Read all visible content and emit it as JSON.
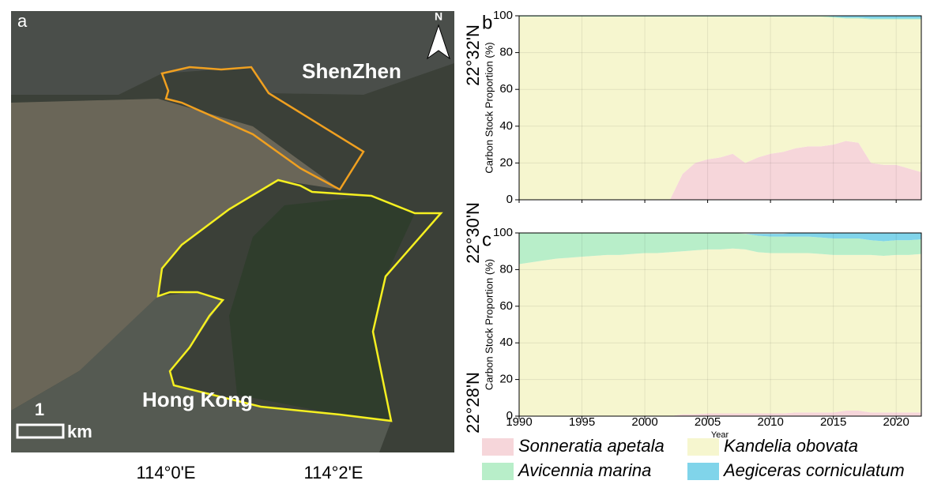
{
  "map": {
    "panel_label": "a",
    "city_north": "ShenZhen",
    "city_south": "Hong Kong",
    "north_arrow": "N",
    "scale_value": "1",
    "scale_unit": "km",
    "lat_labels": [
      "22°32'N",
      "22°30'N",
      "22°28'N"
    ],
    "lon_labels": [
      "114°0'E",
      "114°2'E"
    ]
  },
  "chart_data": [
    {
      "type": "area",
      "panel_label": "b",
      "ylabel": "Carbon Stock Proportion (%)",
      "show_xtick_labels": false,
      "x": [
        1990,
        1991,
        1992,
        1993,
        1994,
        1995,
        1996,
        1997,
        1998,
        1999,
        2000,
        2001,
        2002,
        2003,
        2004,
        2005,
        2006,
        2007,
        2008,
        2009,
        2010,
        2011,
        2012,
        2013,
        2014,
        2015,
        2016,
        2017,
        2018,
        2019,
        2020,
        2021,
        2022
      ],
      "xlim": [
        1990,
        2022
      ],
      "xticks": [
        1990,
        1995,
        2000,
        2005,
        2010,
        2015,
        2020
      ],
      "ylim": [
        0,
        100
      ],
      "yticks": [
        0,
        20,
        40,
        60,
        80,
        100
      ],
      "grid": true,
      "series": [
        {
          "name": "Sonneratia apetala",
          "color": "#f6d6da",
          "values": [
            0,
            0,
            0,
            0,
            0,
            0,
            0,
            0,
            0,
            0,
            0,
            0,
            0,
            14,
            20,
            22,
            23,
            25,
            20,
            23,
            25,
            26,
            28,
            29,
            29,
            30,
            32,
            31,
            20,
            19,
            19,
            17,
            15
          ]
        },
        {
          "name": "Kandelia obovata",
          "color": "#f6f6cf",
          "values": [
            99.5,
            99.5,
            99.5,
            99.5,
            99.5,
            99.5,
            99.5,
            99.5,
            99.5,
            99.5,
            99.5,
            99.5,
            99.5,
            85.5,
            79.5,
            77.5,
            76.5,
            74.5,
            79.5,
            76.5,
            74.5,
            73.5,
            71.5,
            70.5,
            70.5,
            69,
            66.5,
            67.5,
            78,
            79,
            79,
            81,
            83
          ]
        },
        {
          "name": "Avicennia marina",
          "color": "#b8eec9",
          "values": [
            0.5,
            0.5,
            0.5,
            0.5,
            0.5,
            0.5,
            0.5,
            0.5,
            0.5,
            0.5,
            0.5,
            0.5,
            0.5,
            0.5,
            0.5,
            0.5,
            0.5,
            0.5,
            0.5,
            0.5,
            0.5,
            0.5,
            0.5,
            0.5,
            0.5,
            0.5,
            0.5,
            0.5,
            0.5,
            0.5,
            0.5,
            0.5,
            0.5
          ]
        },
        {
          "name": "Aegiceras corniculatum",
          "color": "#80d4ea",
          "values": [
            0,
            0,
            0,
            0,
            0,
            0,
            0,
            0,
            0,
            0,
            0,
            0,
            0,
            0,
            0,
            0,
            0,
            0,
            0,
            0,
            0,
            0,
            0,
            0,
            0,
            0.5,
            1,
            1,
            1.5,
            1.5,
            1.5,
            1.5,
            1.5
          ]
        }
      ]
    },
    {
      "type": "area",
      "panel_label": "c",
      "ylabel": "Carbon Stock Proportion (%)",
      "xlabel": "Year",
      "show_xtick_labels": true,
      "x": [
        1990,
        1991,
        1992,
        1993,
        1994,
        1995,
        1996,
        1997,
        1998,
        1999,
        2000,
        2001,
        2002,
        2003,
        2004,
        2005,
        2006,
        2007,
        2008,
        2009,
        2010,
        2011,
        2012,
        2013,
        2014,
        2015,
        2016,
        2017,
        2018,
        2019,
        2020,
        2021,
        2022
      ],
      "xlim": [
        1990,
        2022
      ],
      "xticks": [
        1990,
        1995,
        2000,
        2005,
        2010,
        2015,
        2020
      ],
      "ylim": [
        0,
        100
      ],
      "yticks": [
        0,
        20,
        40,
        60,
        80,
        100
      ],
      "grid": true,
      "series": [
        {
          "name": "Sonneratia apetala",
          "color": "#f6d6da",
          "values": [
            0,
            0,
            0,
            0,
            0,
            0,
            0,
            0,
            0,
            0,
            0,
            0,
            0,
            1,
            1,
            1.5,
            1.5,
            1.5,
            1.5,
            1.5,
            1.5,
            1.5,
            2,
            2,
            2,
            2,
            3,
            3,
            2,
            2,
            2,
            2,
            2
          ]
        },
        {
          "name": "Kandelia obovata",
          "color": "#f6f6cf",
          "values": [
            83,
            84,
            85,
            86,
            86.5,
            87,
            87.5,
            88,
            88,
            88.5,
            89,
            89,
            89.5,
            89,
            89.5,
            89.5,
            89.5,
            90,
            89.5,
            88,
            87.5,
            87.5,
            87,
            87,
            86.5,
            86,
            85,
            85,
            86,
            85.5,
            86,
            86,
            86.5
          ]
        },
        {
          "name": "Avicennia marina",
          "color": "#b8eec9",
          "values": [
            17,
            16,
            15,
            14,
            13.5,
            13,
            12.5,
            12,
            12,
            11.5,
            11,
            11,
            10.5,
            10,
            9.5,
            9,
            9,
            8.5,
            8.5,
            9,
            9,
            9,
            9,
            9,
            9,
            9,
            9,
            9,
            8,
            8,
            8,
            8,
            8
          ]
        },
        {
          "name": "Aegiceras corniculatum",
          "color": "#80d4ea",
          "values": [
            0,
            0,
            0,
            0,
            0,
            0,
            0,
            0,
            0,
            0,
            0,
            0,
            0,
            0,
            0,
            0,
            0,
            0,
            0,
            1,
            1.5,
            1.5,
            2,
            2,
            2.5,
            3,
            3,
            3,
            4,
            4.5,
            4,
            4,
            3.5
          ]
        }
      ]
    }
  ]
}
